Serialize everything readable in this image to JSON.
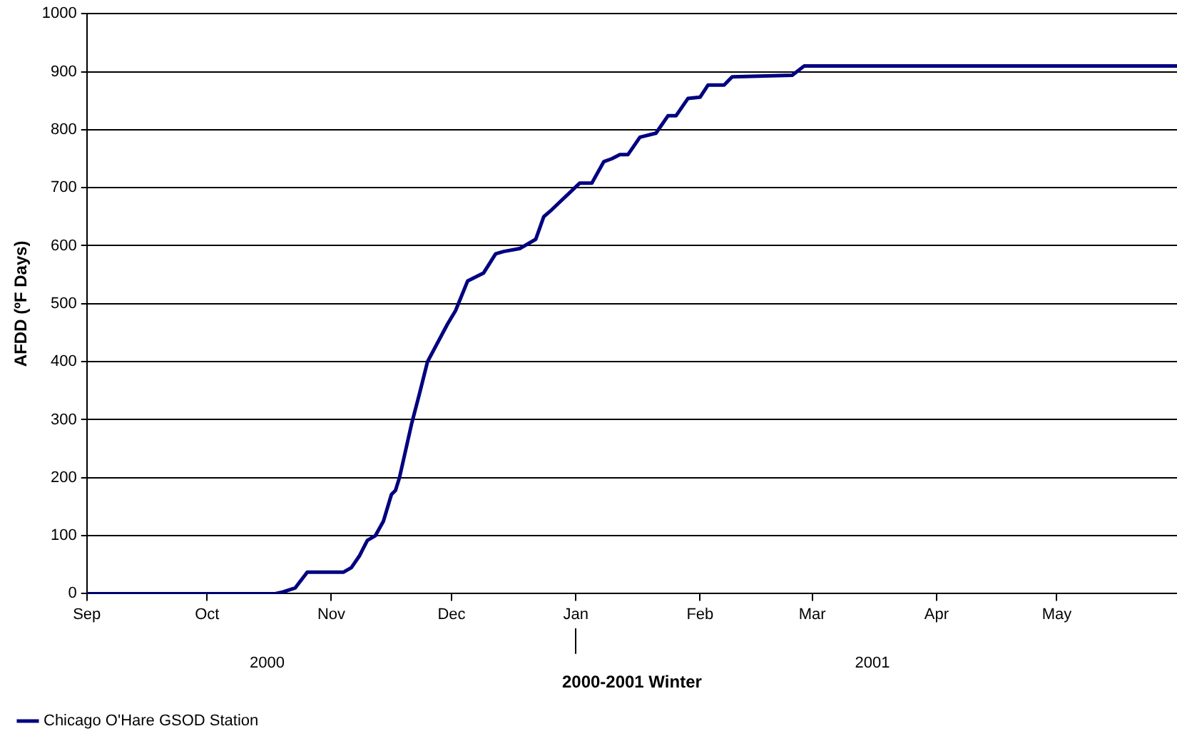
{
  "chart_data": {
    "type": "line",
    "ylabel": "AFDD (ºF Days)",
    "xlabel": "2000-2001 Winter",
    "x": [
      "2000-09-01",
      "2000-10-18",
      "2000-10-20",
      "2000-10-23",
      "2000-10-26",
      "2000-11-04",
      "2000-11-06",
      "2000-11-08",
      "2000-11-10",
      "2000-11-12",
      "2000-11-14",
      "2000-11-16",
      "2000-11-17",
      "2000-11-18",
      "2000-11-21",
      "2000-11-23",
      "2000-11-25",
      "2000-11-30",
      "2000-12-02",
      "2000-12-05",
      "2000-12-09",
      "2000-12-12",
      "2000-12-14",
      "2000-12-18",
      "2000-12-22",
      "2000-12-24",
      "2000-12-26",
      "2001-01-02",
      "2001-01-05",
      "2001-01-08",
      "2001-01-10",
      "2001-01-12",
      "2001-01-14",
      "2001-01-17",
      "2001-01-21",
      "2001-01-24",
      "2001-01-26",
      "2001-01-29",
      "2001-02-01",
      "2001-02-03",
      "2001-02-07",
      "2001-02-09",
      "2001-02-24",
      "2001-02-27",
      "2001-05-31"
    ],
    "series": [
      {
        "name": "Chicago O'Hare GSOD Station",
        "color": "#000080",
        "values": [
          0,
          0,
          3,
          10,
          37,
          37,
          45,
          65,
          92,
          100,
          125,
          171,
          178,
          200,
          292,
          345,
          400,
          465,
          488,
          539,
          553,
          586,
          590,
          595,
          611,
          650,
          662,
          708,
          708,
          745,
          750,
          757,
          757,
          787,
          794,
          824,
          824,
          854,
          856,
          877,
          877,
          891,
          894,
          910,
          910
        ]
      }
    ],
    "xlim": [
      "2000-09-01",
      "2001-05-31"
    ],
    "xticks": [
      {
        "value": "2000-09-01",
        "label": "Sep"
      },
      {
        "value": "2000-10-01",
        "label": "Oct"
      },
      {
        "value": "2000-11-01",
        "label": "Nov"
      },
      {
        "value": "2000-12-01",
        "label": "Dec"
      },
      {
        "value": "2001-01-01",
        "label": "Jan"
      },
      {
        "value": "2001-02-01",
        "label": "Feb"
      },
      {
        "value": "2001-03-01",
        "label": "Mar"
      },
      {
        "value": "2001-04-01",
        "label": "Apr"
      },
      {
        "value": "2001-05-01",
        "label": "May"
      }
    ],
    "x2lim": [
      "2000-09-01",
      "2001-05-31"
    ],
    "x2ticks": [
      {
        "value": "2000-10-16",
        "label": "2000"
      },
      {
        "value": "2001-01-01",
        "label": null
      },
      {
        "value": "2001-03-16",
        "label": "2001"
      }
    ],
    "ylim": [
      0,
      1000
    ],
    "yticks": [
      0,
      100,
      200,
      300,
      400,
      500,
      600,
      700,
      800,
      900,
      1000
    ],
    "grid": "y",
    "legend": "bottom left",
    "marker": "none",
    "line_style": "solid"
  }
}
